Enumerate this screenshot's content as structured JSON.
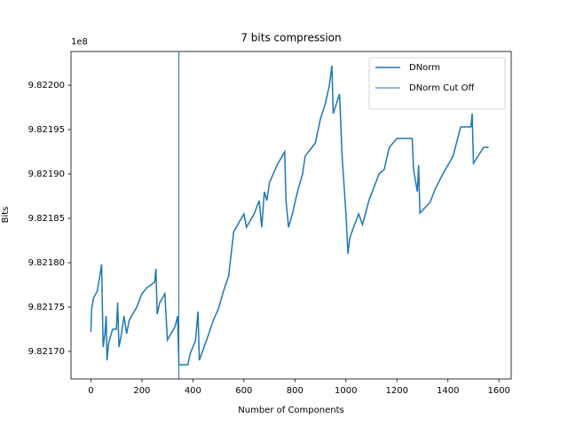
{
  "chart_data": {
    "type": "line",
    "title": "7 bits compression",
    "x_label": "Number of Components",
    "y_label": "Bits",
    "y_offset_text": "1e8",
    "xlim": [
      -78,
      1648
    ],
    "xticks": [
      0,
      200,
      400,
      600,
      800,
      1000,
      1200,
      1400,
      1600
    ],
    "ylim": [
      9.821669,
      9.822038
    ],
    "yticks": [
      {
        "value": 9.8217,
        "label": "9.82170"
      },
      {
        "value": 9.82175,
        "label": "9.82175"
      },
      {
        "value": 9.8218,
        "label": "9.82180"
      },
      {
        "value": 9.82185,
        "label": "9.82185"
      },
      {
        "value": 9.8219,
        "label": "9.82190"
      },
      {
        "value": 9.82195,
        "label": "9.82195"
      },
      {
        "value": 9.822,
        "label": "9.82200"
      }
    ],
    "legend": "upper right",
    "series": [
      {
        "name": "DNorm",
        "color": "#1f77b4",
        "x": [
          0,
          3,
          10,
          25,
          35,
          42,
          45,
          48,
          55,
          60,
          63,
          70,
          85,
          100,
          105,
          110,
          120,
          130,
          140,
          150,
          180,
          200,
          220,
          250,
          255,
          260,
          270,
          290,
          300,
          330,
          340,
          345,
          380,
          390,
          410,
          420,
          425,
          440,
          460,
          480,
          500,
          520,
          540,
          560,
          580,
          600,
          610,
          640,
          660,
          670,
          680,
          690,
          700,
          730,
          760,
          765,
          775,
          790,
          810,
          830,
          840,
          880,
          900,
          920,
          935,
          945,
          950,
          975,
          985,
          1000,
          1008,
          1015,
          1030,
          1050,
          1065,
          1090,
          1110,
          1130,
          1150,
          1170,
          1200,
          1260,
          1265,
          1280,
          1285,
          1290,
          1330,
          1350,
          1380,
          1420,
          1450,
          1490,
          1495,
          1500,
          1540,
          1560
        ],
        "values": [
          9.821722,
          9.821748,
          9.82176,
          9.821768,
          9.821785,
          9.821798,
          9.821752,
          9.821705,
          9.82172,
          9.82174,
          9.82169,
          9.82171,
          9.821725,
          9.821725,
          9.821755,
          9.821705,
          9.82172,
          9.82174,
          9.82172,
          9.821735,
          9.82175,
          9.821765,
          9.821772,
          9.821778,
          9.821793,
          9.821742,
          9.821755,
          9.821765,
          9.821713,
          9.821728,
          9.82174,
          9.821685,
          9.821685,
          9.821698,
          9.821712,
          9.821745,
          9.82169,
          9.821702,
          9.821718,
          9.821735,
          9.821748,
          9.821768,
          9.821785,
          9.821835,
          9.821845,
          9.821855,
          9.82184,
          9.821855,
          9.82187,
          9.82184,
          9.82188,
          9.82187,
          9.82189,
          9.82191,
          9.821925,
          9.82187,
          9.82184,
          9.821855,
          9.82188,
          9.8219,
          9.82192,
          9.821935,
          9.821962,
          9.82198,
          9.822,
          9.822022,
          9.821968,
          9.82199,
          9.82192,
          9.821855,
          9.82181,
          9.821828,
          9.82184,
          9.821855,
          9.821843,
          9.82187,
          9.821885,
          9.8219,
          9.821905,
          9.82193,
          9.82194,
          9.82194,
          9.821905,
          9.82188,
          9.82191,
          9.821856,
          9.821868,
          9.821883,
          9.8219,
          9.82192,
          9.821953,
          9.821953,
          9.821968,
          9.821912,
          9.82193,
          9.82193
        ]
      }
    ],
    "cutoff": {
      "name": "DNorm Cut Off",
      "x": 345,
      "color": "#1f77b4"
    }
  }
}
